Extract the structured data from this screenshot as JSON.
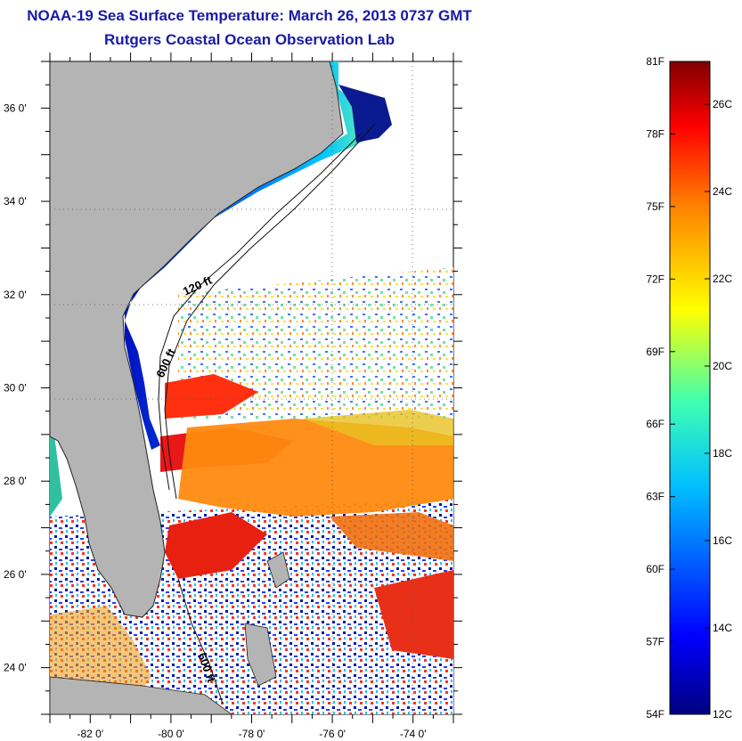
{
  "title": "NOAA-19 Sea Surface Temperature:  March 26, 2013 0737 GMT",
  "subtitle": "Rutgers Coastal Ocean Observation Lab",
  "map": {
    "lon_range": [
      -83,
      -73
    ],
    "lat_range": [
      23,
      37
    ],
    "lat_ticks": [
      {
        "value": 36,
        "label": "36 0'"
      },
      {
        "value": 34,
        "label": "34 0'"
      },
      {
        "value": 32,
        "label": "32 0'"
      },
      {
        "value": 30,
        "label": "30 0'"
      },
      {
        "value": 28,
        "label": "28 0'"
      },
      {
        "value": 26,
        "label": "26 0'"
      },
      {
        "value": 24,
        "label": "24 0'"
      }
    ],
    "lon_ticks": [
      {
        "value": -82,
        "label": "-82 0'"
      },
      {
        "value": -80,
        "label": "-80 0'"
      },
      {
        "value": -78,
        "label": "-78 0'"
      },
      {
        "value": -76,
        "label": "-76 0'"
      },
      {
        "value": -74,
        "label": "-74 0'"
      }
    ],
    "contour_labels": [
      "120 ft",
      "600 ft",
      "600 ft"
    ]
  },
  "colorbar": {
    "f_labels": [
      "81F",
      "78F",
      "75F",
      "72F",
      "69F",
      "66F",
      "63F",
      "60F",
      "57F",
      "54F"
    ],
    "c_labels": [
      "26C",
      "24C",
      "22C",
      "20C",
      "18C",
      "16C",
      "14C",
      "12C"
    ],
    "colors": {
      "min": "#00008f",
      "low": "#0060ff",
      "mid": "#20e0a0",
      "yellow": "#ffff00",
      "orange": "#ff8000",
      "max": "#800000"
    }
  }
}
